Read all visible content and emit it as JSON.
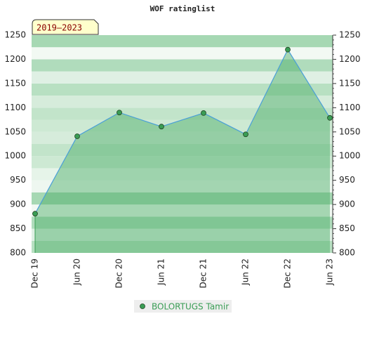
{
  "chart_data": {
    "type": "area",
    "title": "WOF ratinglist",
    "badge": "2019–2023",
    "categories": [
      "Dec 19",
      "Jun 20",
      "Dec 20",
      "Jun 21",
      "Dec 21",
      "Jun 22",
      "Dec 22",
      "Jun 23"
    ],
    "series": [
      {
        "name": "BOLORTUGS Tamir",
        "color": "#3a9d55",
        "line_color": "#4a9fd8",
        "values": [
          881,
          1041,
          1090,
          1061,
          1089,
          1045,
          1220,
          1079
        ]
      }
    ],
    "ylim": [
      800,
      1250
    ],
    "yticks": [
      800,
      850,
      900,
      950,
      1000,
      1050,
      1100,
      1150,
      1200,
      1250
    ],
    "grid": true
  }
}
